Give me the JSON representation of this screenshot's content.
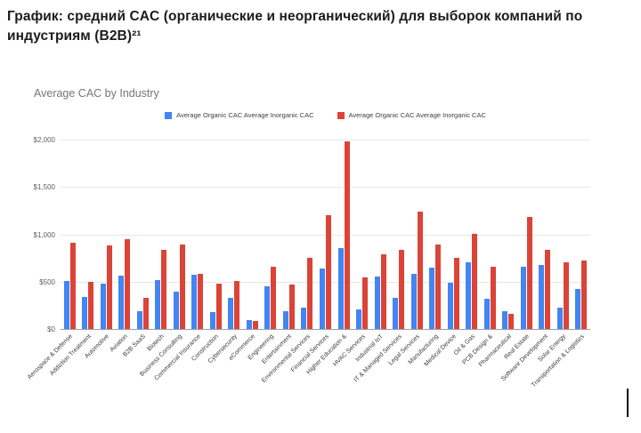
{
  "page": {
    "doc_title_line1": "График: средний CAC (органические и неорганический) для выборок компаний по",
    "doc_title_line2": "индустриям (B2B)²¹"
  },
  "chart_data": {
    "type": "bar",
    "title": "Average CAC by Industry",
    "categories": [
      "Aerospace & Defense",
      "Addiction Treatment",
      "Automotive",
      "Aviation",
      "B2B SaaS",
      "Biotech",
      "Business Consulting",
      "Commercial Insurance",
      "Construction",
      "Cybersecurity",
      "eCommerce",
      "Engineering",
      "Entertainment",
      "Environmental Services",
      "Financial Services",
      "Higher Education &",
      "HVAC Services",
      "Industrial IoT",
      "IT & Managed Services",
      "Legal Services",
      "Manufacturing",
      "Medical Device",
      "Oil & Gas",
      "PCB Design &",
      "Pharmaceutical",
      "Real Estate",
      "Software Development",
      "Solar Energy",
      "Transportation & Logistics"
    ],
    "series": [
      {
        "name": "Average Organic CAC Average Inorganic CAC",
        "color": "#4285F4",
        "values": [
          510,
          340,
          475,
          565,
          185,
          520,
          390,
          575,
          180,
          330,
          90,
          450,
          185,
          225,
          635,
          855,
          210,
          555,
          325,
          585,
          650,
          490,
          700,
          320,
          185,
          655,
          675,
          230,
          425
        ]
      },
      {
        "name": "Average Organic CAC Average Inorganic CAC",
        "color": "#DB4437",
        "values": [
          910,
          500,
          880,
          950,
          330,
          840,
          890,
          580,
          480,
          505,
          85,
          660,
          465,
          755,
          1200,
          1980,
          540,
          785,
          840,
          1240,
          895,
          750,
          1000,
          655,
          155,
          1185,
          840,
          700,
          720
        ]
      }
    ],
    "xlabel": "",
    "ylabel": "",
    "ylim": [
      0,
      2000
    ],
    "yticks": [
      "$0",
      "$500",
      "$1,000",
      "$1,500",
      "$2,000"
    ],
    "grid": true,
    "legend_position": "top-center"
  }
}
